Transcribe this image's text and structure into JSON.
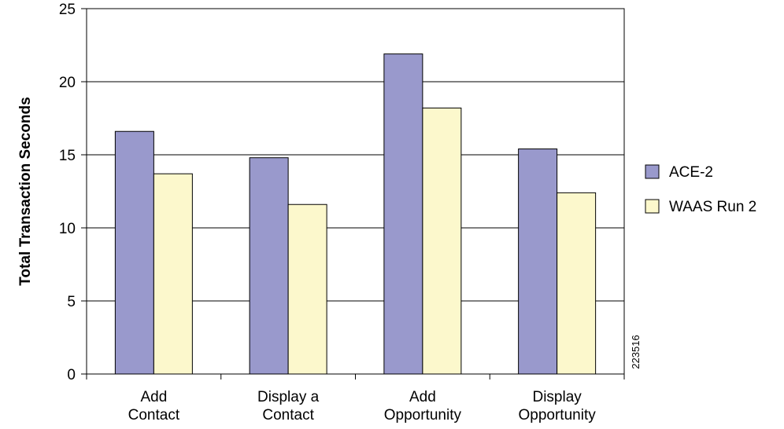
{
  "chart_data": {
    "type": "bar",
    "categories": [
      [
        "Add",
        "Contact"
      ],
      [
        "Display a",
        "Contact"
      ],
      [
        "Add",
        "Opportunity"
      ],
      [
        "Display",
        "Opportunity"
      ]
    ],
    "series": [
      {
        "name": "ACE-2",
        "values": [
          16.6,
          14.8,
          21.9,
          15.4
        ],
        "color": "#9999cc"
      },
      {
        "name": "WAAS Run 2",
        "values": [
          13.7,
          11.6,
          18.2,
          12.4
        ],
        "color": "#fcf8cc"
      }
    ],
    "ylabel": "Total Transaction Seconds",
    "xlabel": "",
    "ylim": [
      0,
      25
    ],
    "yticks": [
      0,
      5,
      10,
      15,
      20,
      25
    ],
    "grid": true,
    "legend": "right",
    "figure_id": "223516"
  }
}
